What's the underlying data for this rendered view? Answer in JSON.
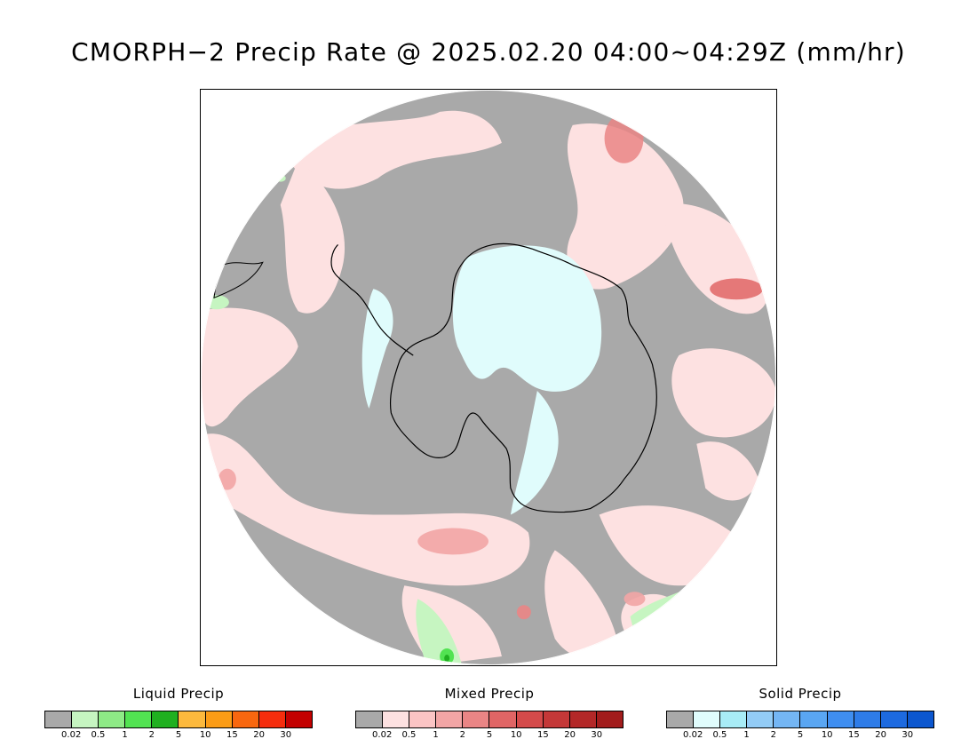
{
  "title": "CMORPH−2 Precip Rate @ 2025.02.20 04:00~04:29Z (mm/hr)",
  "map": {
    "projection": "south-polar-stereographic",
    "background_color": "#a9a9a9",
    "coastline_color": "#000000",
    "region": "Antarctica and Southern Ocean"
  },
  "legends": [
    {
      "title": "Liquid Precip",
      "colors": [
        "#a9a9a9",
        "#c6f5c1",
        "#8eea86",
        "#52e352",
        "#20b020",
        "#fcb93d",
        "#fb9c16",
        "#f8670f",
        "#f52d0d",
        "#c30000"
      ],
      "ticks": [
        "0.02",
        "0.5",
        "1",
        "2",
        "5",
        "10",
        "15",
        "20",
        "30"
      ]
    },
    {
      "title": "Mixed Precip",
      "colors": [
        "#a9a9a9",
        "#fde1e1",
        "#fbc4c4",
        "#f2a5a5",
        "#ea8585",
        "#e06565",
        "#d44a4a",
        "#c43838",
        "#b32828",
        "#a21c1c"
      ],
      "ticks": [
        "0.02",
        "0.5",
        "1",
        "2",
        "5",
        "10",
        "15",
        "20",
        "30"
      ]
    },
    {
      "title": "Solid Precip",
      "colors": [
        "#a9a9a9",
        "#e0fcfc",
        "#a8ecf6",
        "#93ccf6",
        "#74b6f4",
        "#5aa6f2",
        "#3f8ef0",
        "#2e7ce8",
        "#1d6ae0",
        "#0c57cf"
      ],
      "ticks": [
        "0.02",
        "0.5",
        "1",
        "2",
        "5",
        "10",
        "15",
        "20",
        "30"
      ]
    }
  ]
}
